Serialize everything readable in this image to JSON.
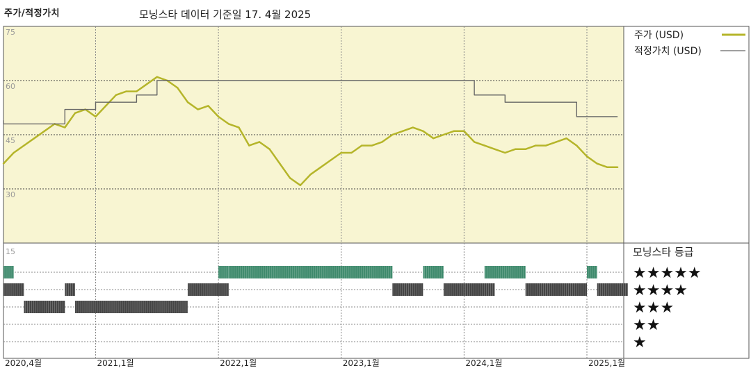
{
  "header": {
    "left_title": "주가/적정가치",
    "subtitle": "모닝스타 데이터 기준일 17. 4월 2025"
  },
  "colors": {
    "price_line": "#b5b52a",
    "fair_value_line": "#666666",
    "plot_bg": "#f8f5d2",
    "rating_bar_green": "#3e8a6c",
    "rating_bar_dark": "#444444"
  },
  "chart_data": [
    {
      "type": "line",
      "title": "",
      "ylim": [
        15,
        75
      ],
      "y_ticks": [
        "75",
        "60",
        "45",
        "30"
      ],
      "x_ticks": [
        "2020,4월",
        "2021,1월",
        "2022,1월",
        "2023,1월",
        "2024,1월",
        "2025,1월"
      ],
      "series": [
        {
          "name": "주가 (USD)",
          "x": [
            "2020-04",
            "2020-05",
            "2020-06",
            "2020-07",
            "2020-08",
            "2020-09",
            "2020-10",
            "2020-11",
            "2020-12",
            "2021-01",
            "2021-02",
            "2021-03",
            "2021-04",
            "2021-05",
            "2021-06",
            "2021-07",
            "2021-08",
            "2021-09",
            "2021-10",
            "2021-11",
            "2021-12",
            "2022-01",
            "2022-02",
            "2022-03",
            "2022-04",
            "2022-05",
            "2022-06",
            "2022-07",
            "2022-08",
            "2022-09",
            "2022-10",
            "2022-11",
            "2022-12",
            "2023-01",
            "2023-02",
            "2023-03",
            "2023-04",
            "2023-05",
            "2023-06",
            "2023-07",
            "2023-08",
            "2023-09",
            "2023-10",
            "2023-11",
            "2023-12",
            "2024-01",
            "2024-02",
            "2024-03",
            "2024-04",
            "2024-05",
            "2024-06",
            "2024-07",
            "2024-08",
            "2024-09",
            "2024-10",
            "2024-11",
            "2024-12",
            "2025-01",
            "2025-02",
            "2025-03",
            "2025-04"
          ],
          "values": [
            37,
            40,
            42,
            44,
            46,
            48,
            47,
            51,
            52,
            50,
            53,
            56,
            57,
            57,
            59,
            61,
            60,
            58,
            54,
            52,
            53,
            50,
            48,
            47,
            42,
            43,
            41,
            37,
            33,
            31,
            34,
            36,
            38,
            40,
            40,
            42,
            42,
            43,
            45,
            46,
            47,
            46,
            44,
            45,
            46,
            46,
            43,
            42,
            41,
            40,
            41,
            41,
            42,
            42,
            43,
            44,
            42,
            39,
            37,
            36,
            36
          ]
        },
        {
          "name": "적정가치 (USD)",
          "x": [
            "2020-04",
            "2020-04",
            "2020-10",
            "2020-10",
            "2021-01",
            "2021-01",
            "2021-05",
            "2021-05",
            "2021-07",
            "2021-07",
            "2024-02",
            "2024-02",
            "2024-05",
            "2024-05",
            "2024-12",
            "2024-12",
            "2025-04"
          ],
          "values": [
            49,
            48,
            48,
            52,
            52,
            54,
            54,
            56,
            56,
            60,
            60,
            56,
            56,
            54,
            54,
            50,
            50
          ]
        }
      ]
    },
    {
      "type": "table",
      "title": "모닝스타 등급",
      "y_ticks": [
        "15"
      ],
      "rows": [
        "★★★★★",
        "★★★★",
        "★★★",
        "★★",
        "★"
      ],
      "periods": [
        {
          "row": 1,
          "start": "2020-04",
          "end": "2020-04"
        },
        {
          "row": 2,
          "start": "2020-04",
          "end": "2020-05"
        },
        {
          "row": 2,
          "start": "2020-10",
          "end": "2020-10"
        },
        {
          "row": 3,
          "start": "2020-06",
          "end": "2020-09"
        },
        {
          "row": 3,
          "start": "2020-11",
          "end": "2021-09"
        },
        {
          "row": 2,
          "start": "2021-10",
          "end": "2022-01"
        },
        {
          "row": 2,
          "start": "2022-01",
          "end": "2022-01"
        },
        {
          "row": 1,
          "start": "2022-01",
          "end": "2022-01"
        },
        {
          "row": 1,
          "start": "2022-02",
          "end": "2023-05"
        },
        {
          "row": 2,
          "start": "2023-06",
          "end": "2023-08"
        },
        {
          "row": 1,
          "start": "2023-09",
          "end": "2023-10"
        },
        {
          "row": 2,
          "start": "2023-11",
          "end": "2023-12"
        },
        {
          "row": 2,
          "start": "2024-01",
          "end": "2024-03"
        },
        {
          "row": 1,
          "start": "2024-03",
          "end": "2024-06"
        },
        {
          "row": 2,
          "start": "2024-07",
          "end": "2024-12"
        },
        {
          "row": 1,
          "start": "2025-01",
          "end": "2025-01"
        },
        {
          "row": 2,
          "start": "2025-02",
          "end": "2025-04"
        }
      ]
    }
  ],
  "legend": {
    "price_label": "주가 (USD)",
    "fair_label": "적정가치 (USD)"
  },
  "rating_panel": {
    "title": "모닝스타 등급",
    "stars": [
      "★★★★★",
      "★★★★",
      "★★★",
      "★★",
      "★"
    ]
  }
}
